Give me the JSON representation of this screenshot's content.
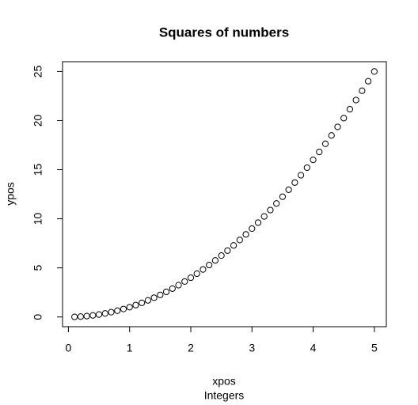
{
  "chart_data": {
    "type": "scatter",
    "title": "Squares of numbers",
    "subtitle": "Integers",
    "x_label": "xpos",
    "y_label": "ypos",
    "x": [
      0.1,
      0.2,
      0.3,
      0.4,
      0.5,
      0.6,
      0.7,
      0.8,
      0.9,
      1,
      1.1,
      1.2,
      1.3,
      1.4,
      1.5,
      1.6,
      1.7,
      1.8,
      1.9,
      2,
      2.1,
      2.2,
      2.3,
      2.4,
      2.5,
      2.6,
      2.7,
      2.8,
      2.9,
      3,
      3.1,
      3.2,
      3.3,
      3.4,
      3.5,
      3.6,
      3.7,
      3.8,
      3.9,
      4,
      4.1,
      4.2,
      4.3,
      4.4,
      4.5,
      4.6,
      4.7,
      4.8,
      4.9,
      5
    ],
    "values": [
      0.01,
      0.04,
      0.09,
      0.16,
      0.25,
      0.36,
      0.49,
      0.64,
      0.81,
      1,
      1.21,
      1.44,
      1.69,
      1.96,
      2.25,
      2.56,
      2.89,
      3.24,
      3.61,
      4,
      4.41,
      4.84,
      5.29,
      5.76,
      6.25,
      6.76,
      7.29,
      7.84,
      8.41,
      9,
      9.61,
      10.24,
      10.89,
      11.56,
      12.25,
      12.96,
      13.69,
      14.44,
      15.21,
      16,
      16.81,
      17.64,
      18.49,
      19.36,
      20.25,
      21.16,
      22.09,
      23.04,
      24.01,
      25
    ],
    "color": "#000000",
    "xlim": [
      -0.096,
      5.196
    ],
    "ylim": [
      -0.9896,
      25.9996
    ],
    "xticks": [
      0,
      1,
      2,
      3,
      4,
      5
    ],
    "yticks": [
      0,
      5,
      10,
      15,
      20,
      25
    ]
  }
}
